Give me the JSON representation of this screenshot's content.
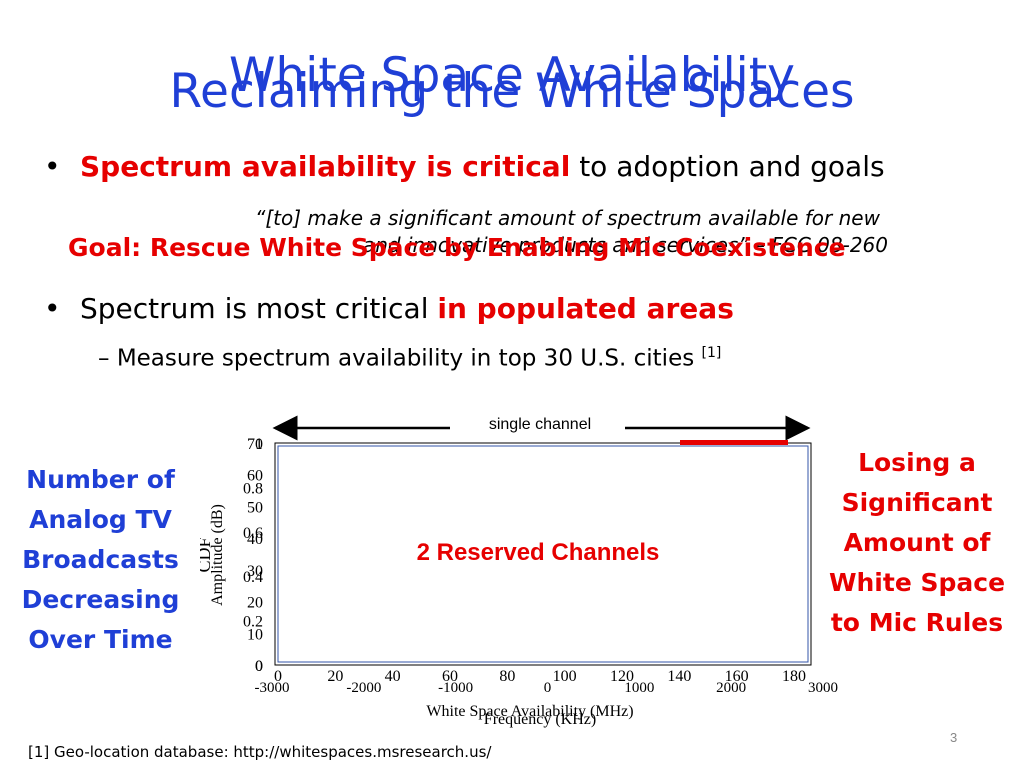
{
  "slide": {
    "title_overlay": "White Space Availability",
    "title_main": "Reclaiming the White Spaces",
    "bullet1_red": "Spectrum availability is critical",
    "bullet1_rest": " to adoption and goals",
    "bullet_symbol": "•",
    "quote_line1": "“[to] make a significant amount of spectrum available for new",
    "quote_line2": "and innovative products and services” – FCC 08-260",
    "goal": "Goal:  Rescue White Space by Enabling Mic Coexistence",
    "bullet2_text": "Spectrum is most critical ",
    "bullet2_red": "in populated areas",
    "sub_dash": "–",
    "sub_text": "Measure spectrum availability in top 30 U.S. cities ",
    "sub_ref": "[1]",
    "left_box": [
      "Number of",
      "Analog TV",
      "Broadcasts",
      "Decreasing",
      "Over Time"
    ],
    "right_box": [
      "Losing a",
      "Significant",
      "Amount of",
      "White Space",
      "to Mic Rules"
    ],
    "footnote": "[1] Geo-location database: http://whitespaces.msresearch.us/",
    "page_number": "3"
  },
  "chart_data": {
    "type": "line",
    "annotation_top": "single channel",
    "overlay_label": "2 Reserved Channels",
    "cdf_ylabel": "CDF",
    "cdf_yticks": [
      "1",
      "0.8",
      "0.6",
      "0.4",
      "0.2",
      "0"
    ],
    "cdf_xticks": [
      "0",
      "20",
      "40",
      "60",
      "80",
      "100",
      "120",
      "140",
      "160",
      "180"
    ],
    "cdf_xlabel": "White Space Availability (MHz)",
    "amp_ylabel": "Amplitude (dB)",
    "amp_yticks": [
      "70",
      "60",
      "50",
      "40",
      "30",
      "20",
      "10",
      "0"
    ],
    "amp_xticks": [
      "-3000",
      "-2000",
      "-1000",
      "0",
      "1000",
      "2000",
      "3000"
    ],
    "amp_xlabel": "Frequency (KHz)",
    "colors": {
      "accent_red": "#e60000",
      "title_blue": "#1f3fd6"
    }
  }
}
